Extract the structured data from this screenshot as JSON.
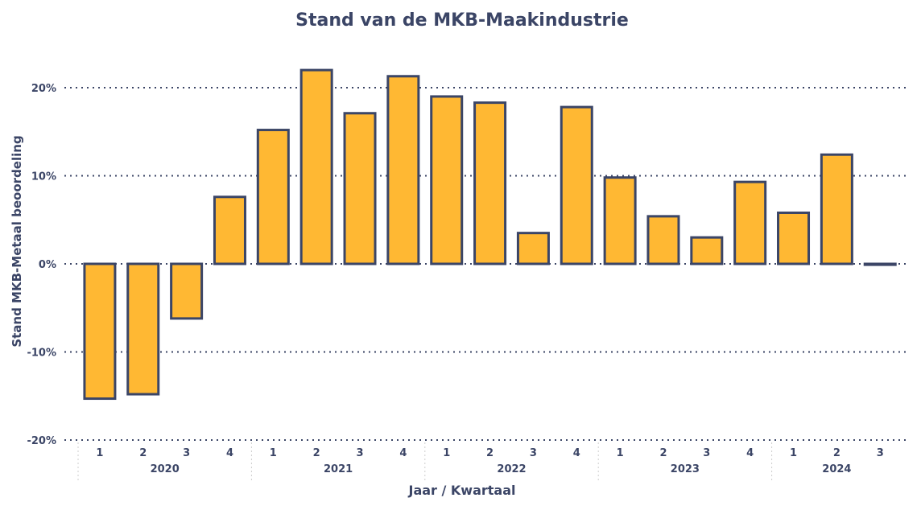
{
  "chart_data": {
    "type": "bar",
    "title": "Stand van de MKB-Maakindustrie",
    "xlabel": "Jaar / Kwartaal",
    "ylabel": "Stand MKB-Metaal beoordeling",
    "ylim": [
      -20,
      22.5
    ],
    "yticks": [
      -20,
      -10,
      0,
      10,
      20
    ],
    "ytick_labels": [
      "-20%",
      "-10%",
      "0%",
      "10%",
      "20%"
    ],
    "grid": true,
    "years": [
      {
        "label": "2020",
        "quarters": [
          "1",
          "2",
          "3",
          "4"
        ]
      },
      {
        "label": "2021",
        "quarters": [
          "1",
          "2",
          "3",
          "4"
        ]
      },
      {
        "label": "2022",
        "quarters": [
          "1",
          "2",
          "3",
          "4"
        ]
      },
      {
        "label": "2023",
        "quarters": [
          "1",
          "2",
          "3",
          "4"
        ]
      },
      {
        "label": "2024",
        "quarters": [
          "1",
          "2",
          "3"
        ]
      }
    ],
    "values": [
      -15.3,
      -14.8,
      -6.2,
      7.6,
      15.2,
      22.0,
      17.1,
      21.3,
      19.0,
      18.3,
      3.5,
      17.8,
      9.8,
      5.4,
      3.0,
      9.3,
      5.8,
      12.4,
      -0.1
    ],
    "colors": {
      "bar": "#ffb833",
      "outline": "#3b4566",
      "text": "#3b4566",
      "grid": "#3b4566"
    }
  }
}
